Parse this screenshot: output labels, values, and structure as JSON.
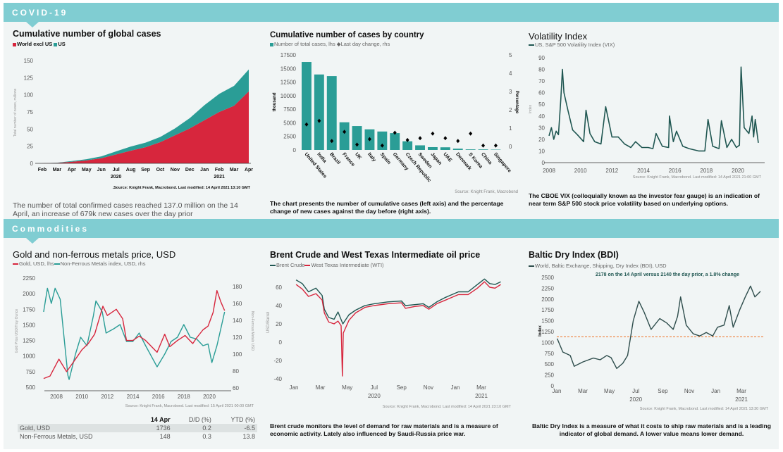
{
  "sections": {
    "covid": "COVID-19",
    "commodities": "Commodities"
  },
  "colors": {
    "header": "#80cdd2",
    "red": "#d7263d",
    "teal": "#2a9d96",
    "dark_teal": "#1f5651",
    "bdi_line": "#2e4d4c",
    "reference": "#f08a4b"
  },
  "chart_data": [
    {
      "id": "global_cases",
      "type": "area",
      "stacked": true,
      "title": "Cumulative number of global cases",
      "ylabel": "Total number of cases, millions",
      "ylim": [
        0,
        150
      ],
      "yticks": [
        0,
        25,
        50,
        75,
        100,
        125,
        150
      ],
      "categories": [
        "Feb",
        "Mar",
        "Apr",
        "May",
        "Jun",
        "Jul",
        "Aug",
        "Sep",
        "Oct",
        "Nov",
        "Dec",
        "Jan",
        "Feb",
        "Mar",
        "Apr"
      ],
      "year_labels": [
        {
          "label": "2020",
          "at": "Jul"
        },
        {
          "label": "2021",
          "at": "Feb"
        }
      ],
      "series": [
        {
          "name": "World excl US",
          "color": "#d7263d",
          "values": [
            0.1,
            0.7,
            2.3,
            4.3,
            7.5,
            13,
            18.5,
            23.5,
            31,
            41,
            51,
            63,
            75,
            84,
            105
          ]
        },
        {
          "name": "US",
          "color": "#2a9d96",
          "values": [
            0,
            0.2,
            1.1,
            1.8,
            2.6,
            4.5,
            6,
            6.7,
            7.5,
            10,
            15,
            22,
            26.5,
            29,
            32
          ]
        }
      ],
      "source": "Source: Knight Frank, Macrobond. Last modified: 14 April 2021 13:10 GMT.",
      "description": "The number of total confirmed cases reached 137.0 million on the 14 April, an increase of 679k new cases over the day prior"
    },
    {
      "id": "cases_by_country",
      "type": "bar",
      "title": "Cumulative number of cases by country",
      "ylabel": "thousand",
      "y2label": "Percentage",
      "ylim": [
        0,
        17500
      ],
      "yticks": [
        0,
        2500,
        5000,
        7500,
        10000,
        12500,
        15000,
        17500
      ],
      "y2lim": [
        0,
        5
      ],
      "y2ticks": [
        0,
        1,
        2,
        3,
        4,
        5
      ],
      "categories": [
        "United States",
        "India",
        "Brazil",
        "France",
        "UK",
        "Italy",
        "Spain",
        "Germany",
        "Czech Republic",
        "Sweden",
        "Japan",
        "UAE",
        "Denmark",
        "S Korea",
        "China",
        "Singapore"
      ],
      "series": [
        {
          "name": "Number of total cases, lhs",
          "color": "#2a9d96",
          "values": [
            16200,
            13900,
            13600,
            5100,
            4400,
            3800,
            3400,
            3100,
            1600,
            850,
            520,
            490,
            240,
            110,
            100,
            60
          ]
        },
        {
          "name": "Last day change, rhs",
          "color": "#000000",
          "marker": "diamond",
          "values": [
            1.2,
            1.4,
            0.3,
            0.8,
            0.1,
            0.4,
            0.05,
            0.75,
            0.35,
            0.45,
            0.7,
            0.45,
            0.3,
            0.7,
            0.05,
            0.05
          ]
        }
      ],
      "source": "Source: Knight Frank, Macrobond",
      "description": "The chart presents the number of cumulative cases (left axis) and the percentage change of new cases against the day before (right axis)."
    },
    {
      "id": "vix",
      "type": "line",
      "title": "Volatility Index",
      "ylabel": "Index",
      "ylim": [
        0,
        90
      ],
      "yticks": [
        0,
        10,
        20,
        30,
        40,
        50,
        60,
        70,
        80,
        90
      ],
      "xticks": [
        2008,
        2010,
        2012,
        2014,
        2016,
        2018,
        2020
      ],
      "series": [
        {
          "name": "US, S&P 500 Volatility Index (VIX)",
          "color": "#1f5651",
          "x": [
            2008.0,
            2008.15,
            2008.3,
            2008.45,
            2008.6,
            2008.75,
            2008.85,
            2008.95,
            2009.2,
            2009.5,
            2009.8,
            2010.2,
            2010.35,
            2010.6,
            2010.9,
            2011.3,
            2011.6,
            2011.8,
            2012.0,
            2012.4,
            2012.8,
            2013.2,
            2013.5,
            2013.9,
            2014.3,
            2014.6,
            2014.8,
            2015.2,
            2015.6,
            2015.65,
            2015.9,
            2016.1,
            2016.5,
            2016.9,
            2017.5,
            2017.9,
            2018.1,
            2018.4,
            2018.8,
            2018.95,
            2019.3,
            2019.6,
            2019.9,
            2020.1,
            2020.2,
            2020.4,
            2020.7,
            2020.9,
            2021.0,
            2021.1,
            2021.3
          ],
          "y": [
            23,
            30,
            20,
            27,
            24,
            55,
            80,
            60,
            45,
            28,
            24,
            18,
            45,
            25,
            18,
            16,
            48,
            35,
            22,
            22,
            16,
            13,
            18,
            13,
            13,
            12,
            25,
            14,
            13,
            40,
            18,
            27,
            14,
            12,
            10,
            10,
            37,
            14,
            12,
            36,
            13,
            20,
            13,
            15,
            82,
            30,
            25,
            40,
            22,
            37,
            17
          ]
        }
      ],
      "source": "Source: Knight Frank, Macrobond. Last modified: 14 April 2021 21:00 GMT",
      "description": "The CBOE VIX (colloquially known as the investor fear gauge) is an indication of near term S&P 500 stock price volatility based on underlying options."
    },
    {
      "id": "gold_metals",
      "type": "line",
      "title": "Gold and non-ferrous metals price, USD",
      "ylabel": "Gold Price USD/Troy Ounce",
      "y2label": "Non-Ferrous Metals USD",
      "ylim": [
        500,
        2250
      ],
      "yticks": [
        500,
        750,
        1000,
        1250,
        1500,
        1750,
        2000,
        2250
      ],
      "y2lim": [
        60,
        180
      ],
      "y2ticks": [
        60,
        80,
        100,
        120,
        140,
        160,
        180
      ],
      "xticks": [
        2008,
        2010,
        2012,
        2014,
        2016,
        2018,
        2020
      ],
      "series": [
        {
          "name": "Gold, USD, lhs",
          "color": "#d7263d",
          "axis": "left",
          "x": [
            2007.0,
            2007.5,
            2008.2,
            2008.8,
            2009.5,
            2010.0,
            2010.5,
            2011.0,
            2011.65,
            2012.0,
            2012.7,
            2013.2,
            2013.5,
            2014.0,
            2014.5,
            2015.0,
            2015.9,
            2016.5,
            2016.9,
            2017.5,
            2018.1,
            2018.7,
            2019.0,
            2019.5,
            2019.9,
            2020.3,
            2020.6,
            2020.9,
            2021.2
          ],
          "y": [
            640,
            680,
            950,
            750,
            950,
            1100,
            1200,
            1350,
            1800,
            1650,
            1750,
            1600,
            1250,
            1250,
            1320,
            1250,
            1060,
            1350,
            1150,
            1250,
            1330,
            1200,
            1290,
            1420,
            1480,
            1700,
            2050,
            1870,
            1730
          ]
        },
        {
          "name": "Non-Ferrous Metals index, USD, rhs",
          "color": "#2a9d96",
          "axis": "right",
          "x": [
            2007.0,
            2007.3,
            2007.6,
            2007.9,
            2008.3,
            2008.9,
            2009.0,
            2009.5,
            2009.9,
            2010.4,
            2010.9,
            2011.1,
            2011.6,
            2011.9,
            2012.5,
            2013.0,
            2013.5,
            2014.0,
            2014.5,
            2015.0,
            2015.9,
            2016.5,
            2017.0,
            2017.5,
            2018.0,
            2018.5,
            2019.0,
            2019.5,
            2019.9,
            2020.2,
            2020.6,
            2020.9,
            2021.2
          ],
          "y": [
            150,
            178,
            160,
            178,
            165,
            75,
            70,
            100,
            120,
            110,
            145,
            163,
            150,
            125,
            130,
            135,
            115,
            115,
            125,
            110,
            85,
            100,
            115,
            120,
            135,
            120,
            118,
            110,
            112,
            90,
            110,
            130,
            150
          ]
        }
      ],
      "source": "Source: Knight Frank, Macrobond. Last modified: 15 April 2021 00:00 GMT",
      "table": {
        "headers": [
          "",
          "14 Apr",
          "D/D (%)",
          "YTD (%)"
        ],
        "rows": [
          [
            "Gold, USD",
            "1736",
            "0.2",
            "-6.5"
          ],
          [
            "Non-Ferrous Metals, USD",
            "148",
            "0.3",
            "13.8"
          ]
        ]
      }
    },
    {
      "id": "oil",
      "type": "line",
      "title": "Brent Crude and West Texas Intermediate oil price",
      "ylabel": "USD/Barrel",
      "ylim": [
        -40,
        70
      ],
      "yticks": [
        -40,
        -20,
        0,
        20,
        40,
        60
      ],
      "xticks": [
        {
          "date": "2020-01-01",
          "label": "Jan"
        },
        {
          "date": "2020-03-01",
          "label": "Mar"
        },
        {
          "date": "2020-05-01",
          "label": "May"
        },
        {
          "date": "2020-07-01",
          "label": "Jul"
        },
        {
          "date": "2020-09-01",
          "label": "Sep"
        },
        {
          "date": "2020-11-01",
          "label": "Nov"
        },
        {
          "date": "2021-01-01",
          "label": "Jan"
        },
        {
          "date": "2021-03-01",
          "label": "Mar"
        }
      ],
      "year_labels": [
        {
          "label": "2020",
          "date": "2020-07-01"
        },
        {
          "label": "2021",
          "date": "2021-03-01"
        }
      ],
      "series": [
        {
          "name": "Brent Crude",
          "color": "#1f5651",
          "x": [
            "2020-01-06",
            "2020-01-20",
            "2020-02-03",
            "2020-02-20",
            "2020-03-05",
            "2020-03-10",
            "2020-03-20",
            "2020-04-01",
            "2020-04-10",
            "2020-04-21",
            "2020-05-05",
            "2020-05-20",
            "2020-06-10",
            "2020-07-01",
            "2020-08-01",
            "2020-09-01",
            "2020-09-10",
            "2020-10-01",
            "2020-10-20",
            "2020-11-02",
            "2020-11-20",
            "2020-12-10",
            "2021-01-08",
            "2021-01-30",
            "2021-02-20",
            "2021-03-08",
            "2021-03-20",
            "2021-04-01",
            "2021-04-14"
          ],
          "y": [
            68,
            64,
            55,
            59,
            51,
            36,
            27,
            25,
            33,
            20,
            30,
            35,
            40,
            42,
            44,
            45,
            40,
            41,
            42,
            38,
            44,
            49,
            55,
            55,
            63,
            69,
            64,
            63,
            66
          ]
        },
        {
          "name": "West Texas Intermediate (WTI)",
          "color": "#d7263d",
          "x": [
            "2020-01-06",
            "2020-01-20",
            "2020-02-03",
            "2020-02-20",
            "2020-03-05",
            "2020-03-10",
            "2020-03-20",
            "2020-04-01",
            "2020-04-10",
            "2020-04-17",
            "2020-04-20",
            "2020-04-22",
            "2020-05-05",
            "2020-05-20",
            "2020-06-10",
            "2020-07-01",
            "2020-08-01",
            "2020-09-01",
            "2020-09-10",
            "2020-10-01",
            "2020-10-20",
            "2020-11-02",
            "2020-11-20",
            "2020-12-10",
            "2021-01-08",
            "2021-01-30",
            "2021-02-20",
            "2021-03-08",
            "2021-03-20",
            "2021-04-01",
            "2021-04-14"
          ],
          "y": [
            63,
            58,
            50,
            53,
            46,
            32,
            22,
            20,
            23,
            18,
            -37,
            10,
            24,
            32,
            38,
            40,
            42,
            43,
            37,
            39,
            40,
            36,
            42,
            46,
            52,
            52,
            59,
            66,
            60,
            59,
            63
          ]
        }
      ],
      "source": "Source: Knight Frank, Macrobond. Last modified: 14 April 2021 23:10 GMT",
      "description": "Brent crude monitors the level of demand for raw materials and is a measure of economic activity. Lately also influenced by Saudi-Russia price war."
    },
    {
      "id": "bdi",
      "type": "line",
      "title": "Baltic Dry Index (BDI)",
      "ylabel": "Index",
      "ylim": [
        0,
        2500
      ],
      "yticks": [
        0,
        250,
        500,
        750,
        1000,
        1250,
        1500,
        1750,
        2000,
        2250,
        2500
      ],
      "xticks": [
        {
          "date": "2020-01-01",
          "label": "Jan"
        },
        {
          "date": "2020-03-01",
          "label": "Mar"
        },
        {
          "date": "2020-05-01",
          "label": "May"
        },
        {
          "date": "2020-07-01",
          "label": "Jul"
        },
        {
          "date": "2020-09-01",
          "label": "Sep"
        },
        {
          "date": "2020-11-01",
          "label": "Nov"
        },
        {
          "date": "2021-01-01",
          "label": "Jan"
        },
        {
          "date": "2021-03-01",
          "label": "Mar"
        }
      ],
      "year_labels": [
        {
          "label": "2020",
          "date": "2020-07-01"
        },
        {
          "label": "2021",
          "date": "2021-03-01"
        }
      ],
      "reference_line": 1130,
      "annotation": "2178 on the 14 April versus 2140 the day prior, a 1.8% change",
      "series": [
        {
          "name": "World, Baltic Exchange, Shipping, Dry Index (BDI), USD",
          "color": "#2e4d4c",
          "x": [
            "2020-01-02",
            "2020-01-15",
            "2020-02-01",
            "2020-02-10",
            "2020-03-01",
            "2020-03-25",
            "2020-04-10",
            "2020-04-25",
            "2020-05-05",
            "2020-05-18",
            "2020-06-01",
            "2020-06-12",
            "2020-06-25",
            "2020-07-08",
            "2020-07-20",
            "2020-08-05",
            "2020-08-25",
            "2020-09-10",
            "2020-09-25",
            "2020-10-05",
            "2020-10-12",
            "2020-10-25",
            "2020-11-10",
            "2020-11-25",
            "2020-12-10",
            "2020-12-25",
            "2021-01-05",
            "2021-01-20",
            "2021-02-01",
            "2021-02-10",
            "2021-02-25",
            "2021-03-10",
            "2021-03-22",
            "2021-04-01",
            "2021-04-14"
          ],
          "y": [
            1090,
            780,
            700,
            450,
            550,
            640,
            600,
            700,
            650,
            400,
            520,
            700,
            1500,
            1950,
            1700,
            1300,
            1550,
            1450,
            1300,
            1600,
            2050,
            1400,
            1200,
            1150,
            1230,
            1150,
            1350,
            1400,
            1850,
            1350,
            1750,
            2050,
            2300,
            2050,
            2178
          ]
        }
      ],
      "source": "Source: Knight Frank, Macrobond. Last modified: 14 April 2021 13:30 GMT",
      "description": "Baltic Dry Index is a measure of what it costs to ship raw materials and is a leading indicator of global demand. A lower value means lower demand."
    }
  ]
}
